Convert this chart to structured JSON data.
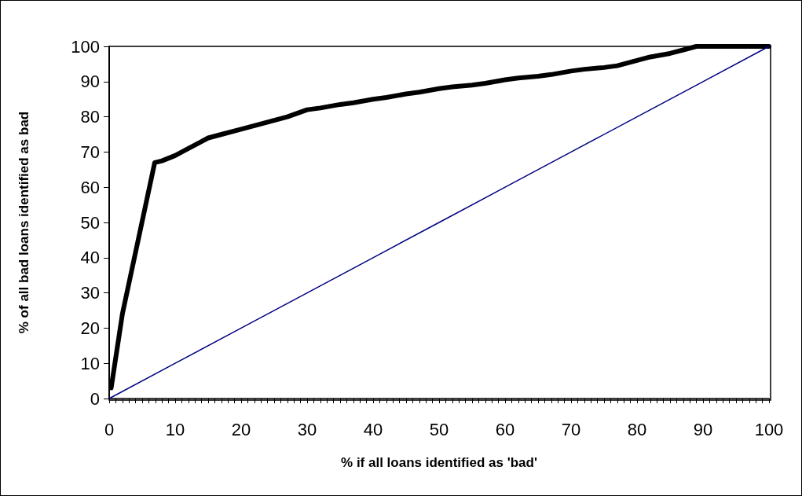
{
  "chart_data": {
    "type": "line",
    "xlabel": "% if all loans identified as 'bad'",
    "ylabel": "% of all bad loans identified as bad",
    "series": [
      {
        "color": "#000000",
        "x": [
          0.3,
          2,
          6.9,
          8,
          10,
          12,
          15,
          17,
          20,
          22,
          25,
          27,
          30,
          32,
          35,
          37,
          40,
          42,
          45,
          47,
          50,
          52,
          55,
          57,
          60,
          62,
          65,
          67,
          70,
          72,
          75,
          77,
          80,
          82,
          85,
          87,
          89,
          92,
          95,
          97,
          100
        ],
        "values": [
          3,
          24,
          67,
          67.5,
          69,
          71,
          74,
          75,
          76.5,
          77.5,
          79,
          80,
          82,
          82.5,
          83.5,
          84,
          85,
          85.5,
          86.5,
          87,
          88,
          88.5,
          89,
          89.5,
          90.5,
          91,
          91.5,
          92,
          93,
          93.5,
          94,
          94.5,
          96,
          97,
          98,
          99,
          100,
          100,
          100,
          100,
          100
        ]
      },
      {
        "color": "#000080",
        "x": [
          0,
          10,
          20,
          30,
          40,
          50,
          60,
          70,
          80,
          90,
          100
        ],
        "values": [
          0,
          10,
          20,
          30,
          40,
          50,
          60,
          70,
          80,
          90,
          100
        ]
      }
    ],
    "xlim": [
      0,
      100
    ],
    "ylim": [
      0,
      100
    ],
    "xticks": [
      0,
      {
        "value": 1,
        "label": null
      },
      {
        "value": 2,
        "label": null
      },
      {
        "value": 3,
        "label": null
      },
      {
        "value": 4,
        "label": null
      },
      {
        "value": 5,
        "label": null
      },
      {
        "value": 6,
        "label": null
      },
      {
        "value": 7,
        "label": null
      },
      {
        "value": 8,
        "label": null
      },
      {
        "value": 9,
        "label": null
      },
      10,
      {
        "value": 11,
        "label": null
      },
      {
        "value": 12,
        "label": null
      },
      {
        "value": 13,
        "label": null
      },
      {
        "value": 14,
        "label": null
      },
      {
        "value": 15,
        "label": null
      },
      {
        "value": 16,
        "label": null
      },
      {
        "value": 17,
        "label": null
      },
      {
        "value": 18,
        "label": null
      },
      {
        "value": 19,
        "label": null
      },
      20,
      {
        "value": 21,
        "label": null
      },
      {
        "value": 22,
        "label": null
      },
      {
        "value": 23,
        "label": null
      },
      {
        "value": 24,
        "label": null
      },
      {
        "value": 25,
        "label": null
      },
      {
        "value": 26,
        "label": null
      },
      {
        "value": 27,
        "label": null
      },
      {
        "value": 28,
        "label": null
      },
      {
        "value": 29,
        "label": null
      },
      30,
      {
        "value": 31,
        "label": null
      },
      {
        "value": 32,
        "label": null
      },
      {
        "value": 33,
        "label": null
      },
      {
        "value": 34,
        "label": null
      },
      {
        "value": 35,
        "label": null
      },
      {
        "value": 36,
        "label": null
      },
      {
        "value": 37,
        "label": null
      },
      {
        "value": 38,
        "label": null
      },
      {
        "value": 39,
        "label": null
      },
      40,
      {
        "value": 41,
        "label": null
      },
      {
        "value": 42,
        "label": null
      },
      {
        "value": 43,
        "label": null
      },
      {
        "value": 44,
        "label": null
      },
      {
        "value": 45,
        "label": null
      },
      {
        "value": 46,
        "label": null
      },
      {
        "value": 47,
        "label": null
      },
      {
        "value": 48,
        "label": null
      },
      {
        "value": 49,
        "label": null
      },
      50,
      {
        "value": 51,
        "label": null
      },
      {
        "value": 52,
        "label": null
      },
      {
        "value": 53,
        "label": null
      },
      {
        "value": 54,
        "label": null
      },
      {
        "value": 55,
        "label": null
      },
      {
        "value": 56,
        "label": null
      },
      {
        "value": 57,
        "label": null
      },
      {
        "value": 58,
        "label": null
      },
      {
        "value": 59,
        "label": null
      },
      60,
      {
        "value": 61,
        "label": null
      },
      {
        "value": 62,
        "label": null
      },
      {
        "value": 63,
        "label": null
      },
      {
        "value": 64,
        "label": null
      },
      {
        "value": 65,
        "label": null
      },
      {
        "value": 66,
        "label": null
      },
      {
        "value": 67,
        "label": null
      },
      {
        "value": 68,
        "label": null
      },
      {
        "value": 69,
        "label": null
      },
      70,
      {
        "value": 71,
        "label": null
      },
      {
        "value": 72,
        "label": null
      },
      {
        "value": 73,
        "label": null
      },
      {
        "value": 74,
        "label": null
      },
      {
        "value": 75,
        "label": null
      },
      {
        "value": 76,
        "label": null
      },
      {
        "value": 77,
        "label": null
      },
      {
        "value": 78,
        "label": null
      },
      {
        "value": 79,
        "label": null
      },
      80,
      {
        "value": 81,
        "label": null
      },
      {
        "value": 82,
        "label": null
      },
      {
        "value": 83,
        "label": null
      },
      {
        "value": 84,
        "label": null
      },
      {
        "value": 85,
        "label": null
      },
      {
        "value": 86,
        "label": null
      },
      {
        "value": 87,
        "label": null
      },
      {
        "value": 88,
        "label": null
      },
      {
        "value": 89,
        "label": null
      },
      90,
      {
        "value": 91,
        "label": null
      },
      {
        "value": 92,
        "label": null
      },
      {
        "value": 93,
        "label": null
      },
      {
        "value": 94,
        "label": null
      },
      {
        "value": 95,
        "label": null
      },
      {
        "value": 96,
        "label": null
      },
      {
        "value": 97,
        "label": null
      },
      {
        "value": 98,
        "label": null
      },
      {
        "value": 99,
        "label": null
      },
      100
    ],
    "yticks": [
      0,
      10,
      20,
      30,
      40,
      50,
      60,
      70,
      80,
      90,
      100
    ],
    "grid": false,
    "marker": "none",
    "line_style": "solid"
  }
}
